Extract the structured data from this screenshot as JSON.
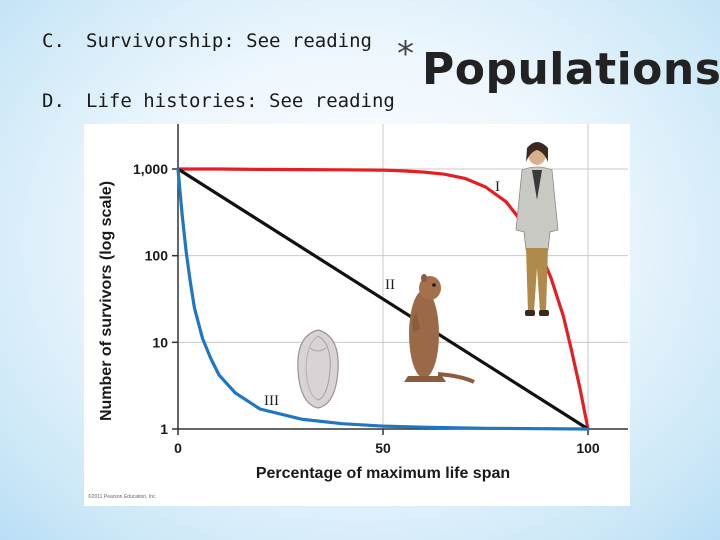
{
  "slide": {
    "lines": [
      {
        "marker": "C.",
        "text": "Survivorship: See reading"
      },
      {
        "marker": "D.",
        "text": "Life histories: See reading"
      }
    ],
    "title_star": "*",
    "title": "Populations"
  },
  "chart_data": {
    "type": "line",
    "xlabel": "Percentage of maximum life span",
    "ylabel": "Number of survivors (log scale)",
    "x_ticks": [
      "0",
      "50",
      "100"
    ],
    "y_ticks": [
      "1",
      "10",
      "100",
      "1,000"
    ],
    "xlim": [
      0,
      100
    ],
    "ylim": [
      1,
      1000
    ],
    "y_scale": "log",
    "grid": true,
    "credit": "©2011 Pearson Education, Inc.",
    "series": [
      {
        "name": "I",
        "color": "#e31e24",
        "x": [
          0,
          10,
          20,
          30,
          40,
          50,
          55,
          60,
          65,
          70,
          75,
          80,
          85,
          88,
          91,
          94,
          96,
          98,
          100
        ],
        "y": [
          1000,
          1000,
          990,
          985,
          980,
          970,
          950,
          920,
          870,
          780,
          620,
          420,
          210,
          120,
          55,
          20,
          8,
          3,
          1
        ]
      },
      {
        "name": "II",
        "color": "#111111",
        "x": [
          0,
          100
        ],
        "y": [
          1000,
          1
        ]
      },
      {
        "name": "III",
        "color": "#1f77c2",
        "x": [
          0,
          1,
          2,
          3,
          4,
          6,
          8,
          10,
          14,
          20,
          30,
          40,
          50,
          60,
          75,
          100
        ],
        "y": [
          1000,
          300,
          110,
          50,
          25,
          11,
          6.5,
          4.2,
          2.6,
          1.7,
          1.3,
          1.15,
          1.08,
          1.05,
          1.02,
          1.0
        ]
      }
    ],
    "illustrations": [
      "human-illustration",
      "ground-squirrel-illustration",
      "oyster-illustration"
    ]
  }
}
